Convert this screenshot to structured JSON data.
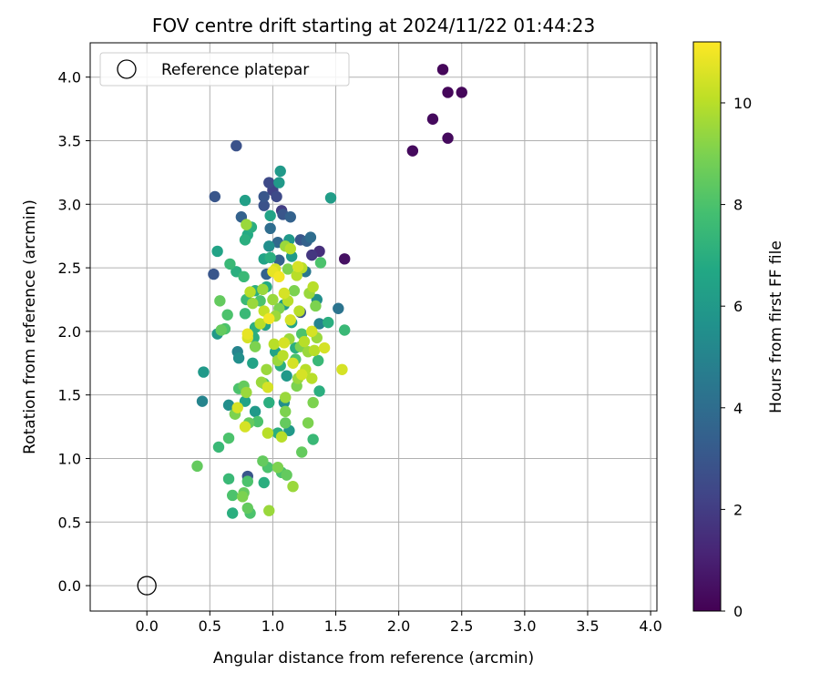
{
  "chart_data": {
    "type": "scatter",
    "title": "FOV centre drift starting at 2024/11/22 01:44:23",
    "xlabel": "Angular distance from reference (arcmin)",
    "ylabel": "Rotation from reference (arcmin)",
    "xlim": [
      -0.45,
      4.05
    ],
    "ylim": [
      -0.2,
      4.27
    ],
    "xticks": [
      "0.0",
      "0.5",
      "1.0",
      "1.5",
      "2.0",
      "2.5",
      "3.0",
      "3.5",
      "4.0"
    ],
    "yticks": [
      "0.0",
      "0.5",
      "1.0",
      "1.5",
      "2.0",
      "2.5",
      "3.0",
      "3.5",
      "4.0"
    ],
    "grid": true,
    "legend": {
      "label": "Reference platepar",
      "location": "top-left",
      "marker": "open-circle"
    },
    "reference_point": [
      0.0,
      0.0
    ],
    "colorbar": {
      "label": "Hours from first FF file",
      "colormap": "viridis",
      "range": [
        0,
        11.2
      ],
      "ticks": [
        "0",
        "2",
        "4",
        "6",
        "8",
        "10"
      ]
    },
    "points": [
      [
        2.35,
        4.06,
        0.2
      ],
      [
        2.39,
        3.88,
        0.2
      ],
      [
        2.5,
        3.88,
        0.2
      ],
      [
        2.27,
        3.67,
        0.3
      ],
      [
        2.39,
        3.52,
        0.3
      ],
      [
        2.11,
        3.42,
        0.3
      ],
      [
        1.57,
        2.57,
        0.5
      ],
      [
        1.37,
        2.63,
        1.5
      ],
      [
        1.31,
        2.6,
        1.8
      ],
      [
        0.71,
        3.46,
        2.8
      ],
      [
        0.97,
        3.17,
        2.5
      ],
      [
        1.0,
        3.11,
        2.2
      ],
      [
        0.54,
        3.06,
        3.0
      ],
      [
        0.93,
        3.06,
        3.0
      ],
      [
        1.03,
        3.06,
        2.5
      ],
      [
        0.93,
        2.99,
        2.8
      ],
      [
        1.07,
        2.95,
        2.0
      ],
      [
        1.08,
        2.92,
        3.0
      ],
      [
        1.14,
        2.9,
        3.5
      ],
      [
        0.75,
        2.9,
        3.5
      ],
      [
        0.98,
        2.81,
        4.0
      ],
      [
        1.22,
        2.72,
        3.0
      ],
      [
        1.27,
        2.71,
        3.5
      ],
      [
        1.3,
        2.74,
        4.0
      ],
      [
        1.04,
        2.7,
        3.8
      ],
      [
        0.53,
        2.45,
        3.0
      ],
      [
        1.52,
        2.18,
        4.3
      ],
      [
        1.22,
        2.15,
        3.0
      ],
      [
        1.05,
        2.56,
        3.5
      ],
      [
        0.95,
        2.45,
        3.5
      ],
      [
        1.26,
        2.47,
        4.5
      ],
      [
        1.06,
        3.26,
        6.0
      ],
      [
        1.05,
        3.17,
        6.0
      ],
      [
        1.46,
        3.05,
        6.2
      ],
      [
        0.78,
        3.03,
        6.3
      ],
      [
        0.98,
        2.91,
        6.5
      ],
      [
        0.83,
        2.82,
        7.0
      ],
      [
        0.8,
        2.76,
        6.8
      ],
      [
        0.78,
        2.72,
        7.0
      ],
      [
        1.13,
        2.72,
        6.0
      ],
      [
        0.97,
        2.67,
        5.5
      ],
      [
        0.56,
        2.63,
        6.5
      ],
      [
        1.15,
        2.59,
        6.0
      ],
      [
        0.66,
        2.53,
        7.5
      ],
      [
        0.93,
        2.57,
        6.5
      ],
      [
        0.98,
        2.58,
        7.0
      ],
      [
        0.71,
        2.47,
        7.0
      ],
      [
        0.77,
        2.43,
        7.5
      ],
      [
        1.38,
        2.54,
        8.0
      ],
      [
        0.95,
        2.35,
        6.8
      ],
      [
        0.86,
        2.32,
        7.0
      ],
      [
        0.79,
        2.25,
        7.5
      ],
      [
        0.9,
        2.24,
        8.0
      ],
      [
        1.35,
        2.25,
        5.5
      ],
      [
        0.58,
        2.24,
        8.5
      ],
      [
        1.09,
        2.21,
        6.0
      ],
      [
        0.64,
        2.13,
        8.0
      ],
      [
        0.78,
        2.14,
        7.5
      ],
      [
        1.15,
        2.07,
        6.5
      ],
      [
        1.37,
        2.06,
        5.0
      ],
      [
        1.44,
        2.07,
        7.0
      ],
      [
        1.57,
        2.01,
        7.5
      ],
      [
        0.59,
        2.01,
        8.5
      ],
      [
        0.56,
        1.98,
        6.0
      ],
      [
        0.62,
        2.02,
        8.0
      ],
      [
        0.86,
        2.03,
        7.0
      ],
      [
        0.94,
        2.05,
        6.5
      ],
      [
        1.23,
        1.98,
        8.0
      ],
      [
        0.85,
        1.95,
        7.0
      ],
      [
        0.72,
        1.84,
        5.0
      ],
      [
        0.73,
        1.79,
        5.5
      ],
      [
        1.02,
        1.84,
        6.5
      ],
      [
        1.18,
        1.87,
        7.0
      ],
      [
        0.84,
        1.75,
        6.5
      ],
      [
        1.18,
        1.78,
        8.0
      ],
      [
        1.36,
        1.77,
        7.5
      ],
      [
        1.06,
        1.73,
        7.0
      ],
      [
        0.45,
        1.68,
        6.0
      ],
      [
        1.11,
        1.65,
        6.0
      ],
      [
        0.73,
        1.55,
        8.0
      ],
      [
        0.77,
        1.57,
        8.5
      ],
      [
        0.93,
        1.59,
        8.0
      ],
      [
        1.37,
        1.53,
        7.0
      ],
      [
        0.44,
        1.45,
        5.0
      ],
      [
        0.65,
        1.42,
        5.5
      ],
      [
        0.78,
        1.45,
        6.5
      ],
      [
        0.97,
        1.44,
        7.0
      ],
      [
        1.09,
        1.44,
        5.5
      ],
      [
        1.32,
        1.44,
        9.0
      ],
      [
        0.7,
        1.35,
        7.5
      ],
      [
        0.86,
        1.37,
        6.0
      ],
      [
        0.81,
        1.28,
        8.5
      ],
      [
        0.88,
        1.29,
        8.0
      ],
      [
        1.1,
        1.28,
        8.5
      ],
      [
        1.28,
        1.28,
        9.0
      ],
      [
        1.13,
        1.22,
        6.0
      ],
      [
        1.04,
        1.2,
        7.0
      ],
      [
        0.65,
        1.16,
        8.0
      ],
      [
        0.57,
        1.09,
        7.5
      ],
      [
        1.32,
        1.15,
        7.5
      ],
      [
        1.23,
        1.05,
        8.5
      ],
      [
        0.92,
        0.98,
        8.5
      ],
      [
        0.96,
        0.93,
        8.0
      ],
      [
        0.4,
        0.94,
        8.5
      ],
      [
        1.04,
        0.93,
        9.0
      ],
      [
        1.07,
        0.89,
        8.0
      ],
      [
        1.11,
        0.87,
        8.5
      ],
      [
        0.8,
        0.86,
        3.0
      ],
      [
        0.8,
        0.82,
        8.0
      ],
      [
        0.93,
        0.81,
        7.0
      ],
      [
        0.65,
        0.84,
        7.5
      ],
      [
        1.16,
        0.78,
        9.5
      ],
      [
        0.77,
        0.73,
        8.5
      ],
      [
        0.68,
        0.71,
        8.0
      ],
      [
        0.8,
        0.61,
        8.5
      ],
      [
        0.82,
        0.57,
        8.0
      ],
      [
        0.97,
        0.59,
        9.5
      ],
      [
        0.68,
        0.57,
        7.0
      ],
      [
        0.76,
        0.7,
        9.0
      ],
      [
        0.79,
        2.84,
        9.5
      ],
      [
        1.1,
        2.67,
        9.5
      ],
      [
        1.14,
        2.65,
        10.0
      ],
      [
        1.12,
        2.49,
        9.0
      ],
      [
        1.02,
        2.49,
        10.5
      ],
      [
        1.0,
        2.47,
        10.8
      ],
      [
        1.05,
        2.43,
        11.0
      ],
      [
        1.2,
        2.51,
        10.5
      ],
      [
        1.23,
        2.5,
        10.0
      ],
      [
        1.19,
        2.44,
        10.0
      ],
      [
        1.29,
        2.3,
        9.5
      ],
      [
        1.32,
        2.35,
        10.0
      ],
      [
        0.82,
        2.31,
        10.0
      ],
      [
        0.92,
        2.33,
        9.5
      ],
      [
        1.09,
        2.3,
        10.5
      ],
      [
        1.17,
        2.32,
        9.0
      ],
      [
        0.84,
        2.22,
        9.5
      ],
      [
        1.0,
        2.25,
        9.5
      ],
      [
        1.12,
        2.24,
        10.0
      ],
      [
        1.05,
        2.18,
        9.0
      ],
      [
        0.93,
        2.16,
        10.2
      ],
      [
        1.34,
        2.2,
        9.0
      ],
      [
        1.21,
        2.16,
        10.0
      ],
      [
        1.02,
        2.12,
        9.5
      ],
      [
        0.97,
        2.1,
        11.0
      ],
      [
        1.14,
        2.09,
        10.5
      ],
      [
        0.9,
        2.06,
        10.0
      ],
      [
        0.8,
        1.98,
        10.8
      ],
      [
        1.31,
        2.0,
        10.5
      ],
      [
        1.25,
        1.92,
        10.0
      ],
      [
        1.13,
        1.94,
        9.5
      ],
      [
        1.09,
        1.91,
        10.5
      ],
      [
        1.01,
        1.9,
        10.0
      ],
      [
        1.22,
        1.88,
        9.0
      ],
      [
        1.33,
        1.85,
        10.0
      ],
      [
        1.41,
        1.87,
        10.5
      ],
      [
        1.28,
        1.84,
        9.5
      ],
      [
        1.08,
        1.81,
        10.0
      ],
      [
        1.04,
        1.77,
        9.5
      ],
      [
        0.95,
        1.7,
        9.5
      ],
      [
        1.26,
        1.7,
        10.0
      ],
      [
        1.23,
        1.66,
        10.5
      ],
      [
        1.2,
        1.63,
        9.5
      ],
      [
        1.31,
        1.63,
        10.0
      ],
      [
        1.55,
        1.7,
        10.5
      ],
      [
        1.19,
        1.57,
        9.0
      ],
      [
        0.96,
        1.56,
        10.5
      ],
      [
        0.79,
        1.52,
        9.5
      ],
      [
        0.72,
        1.4,
        10.5
      ],
      [
        0.7,
        1.35,
        9.0
      ],
      [
        0.78,
        1.25,
        10.5
      ],
      [
        0.96,
        1.2,
        10.0
      ],
      [
        1.07,
        1.17,
        10.0
      ],
      [
        1.1,
        1.37,
        9.0
      ],
      [
        1.1,
        1.48,
        9.5
      ],
      [
        0.91,
        1.6,
        9.5
      ],
      [
        0.8,
        1.95,
        10.5
      ],
      [
        0.86,
        1.88,
        9.0
      ],
      [
        1.16,
        1.75,
        10.5
      ],
      [
        1.35,
        1.95,
        9.5
      ]
    ]
  }
}
